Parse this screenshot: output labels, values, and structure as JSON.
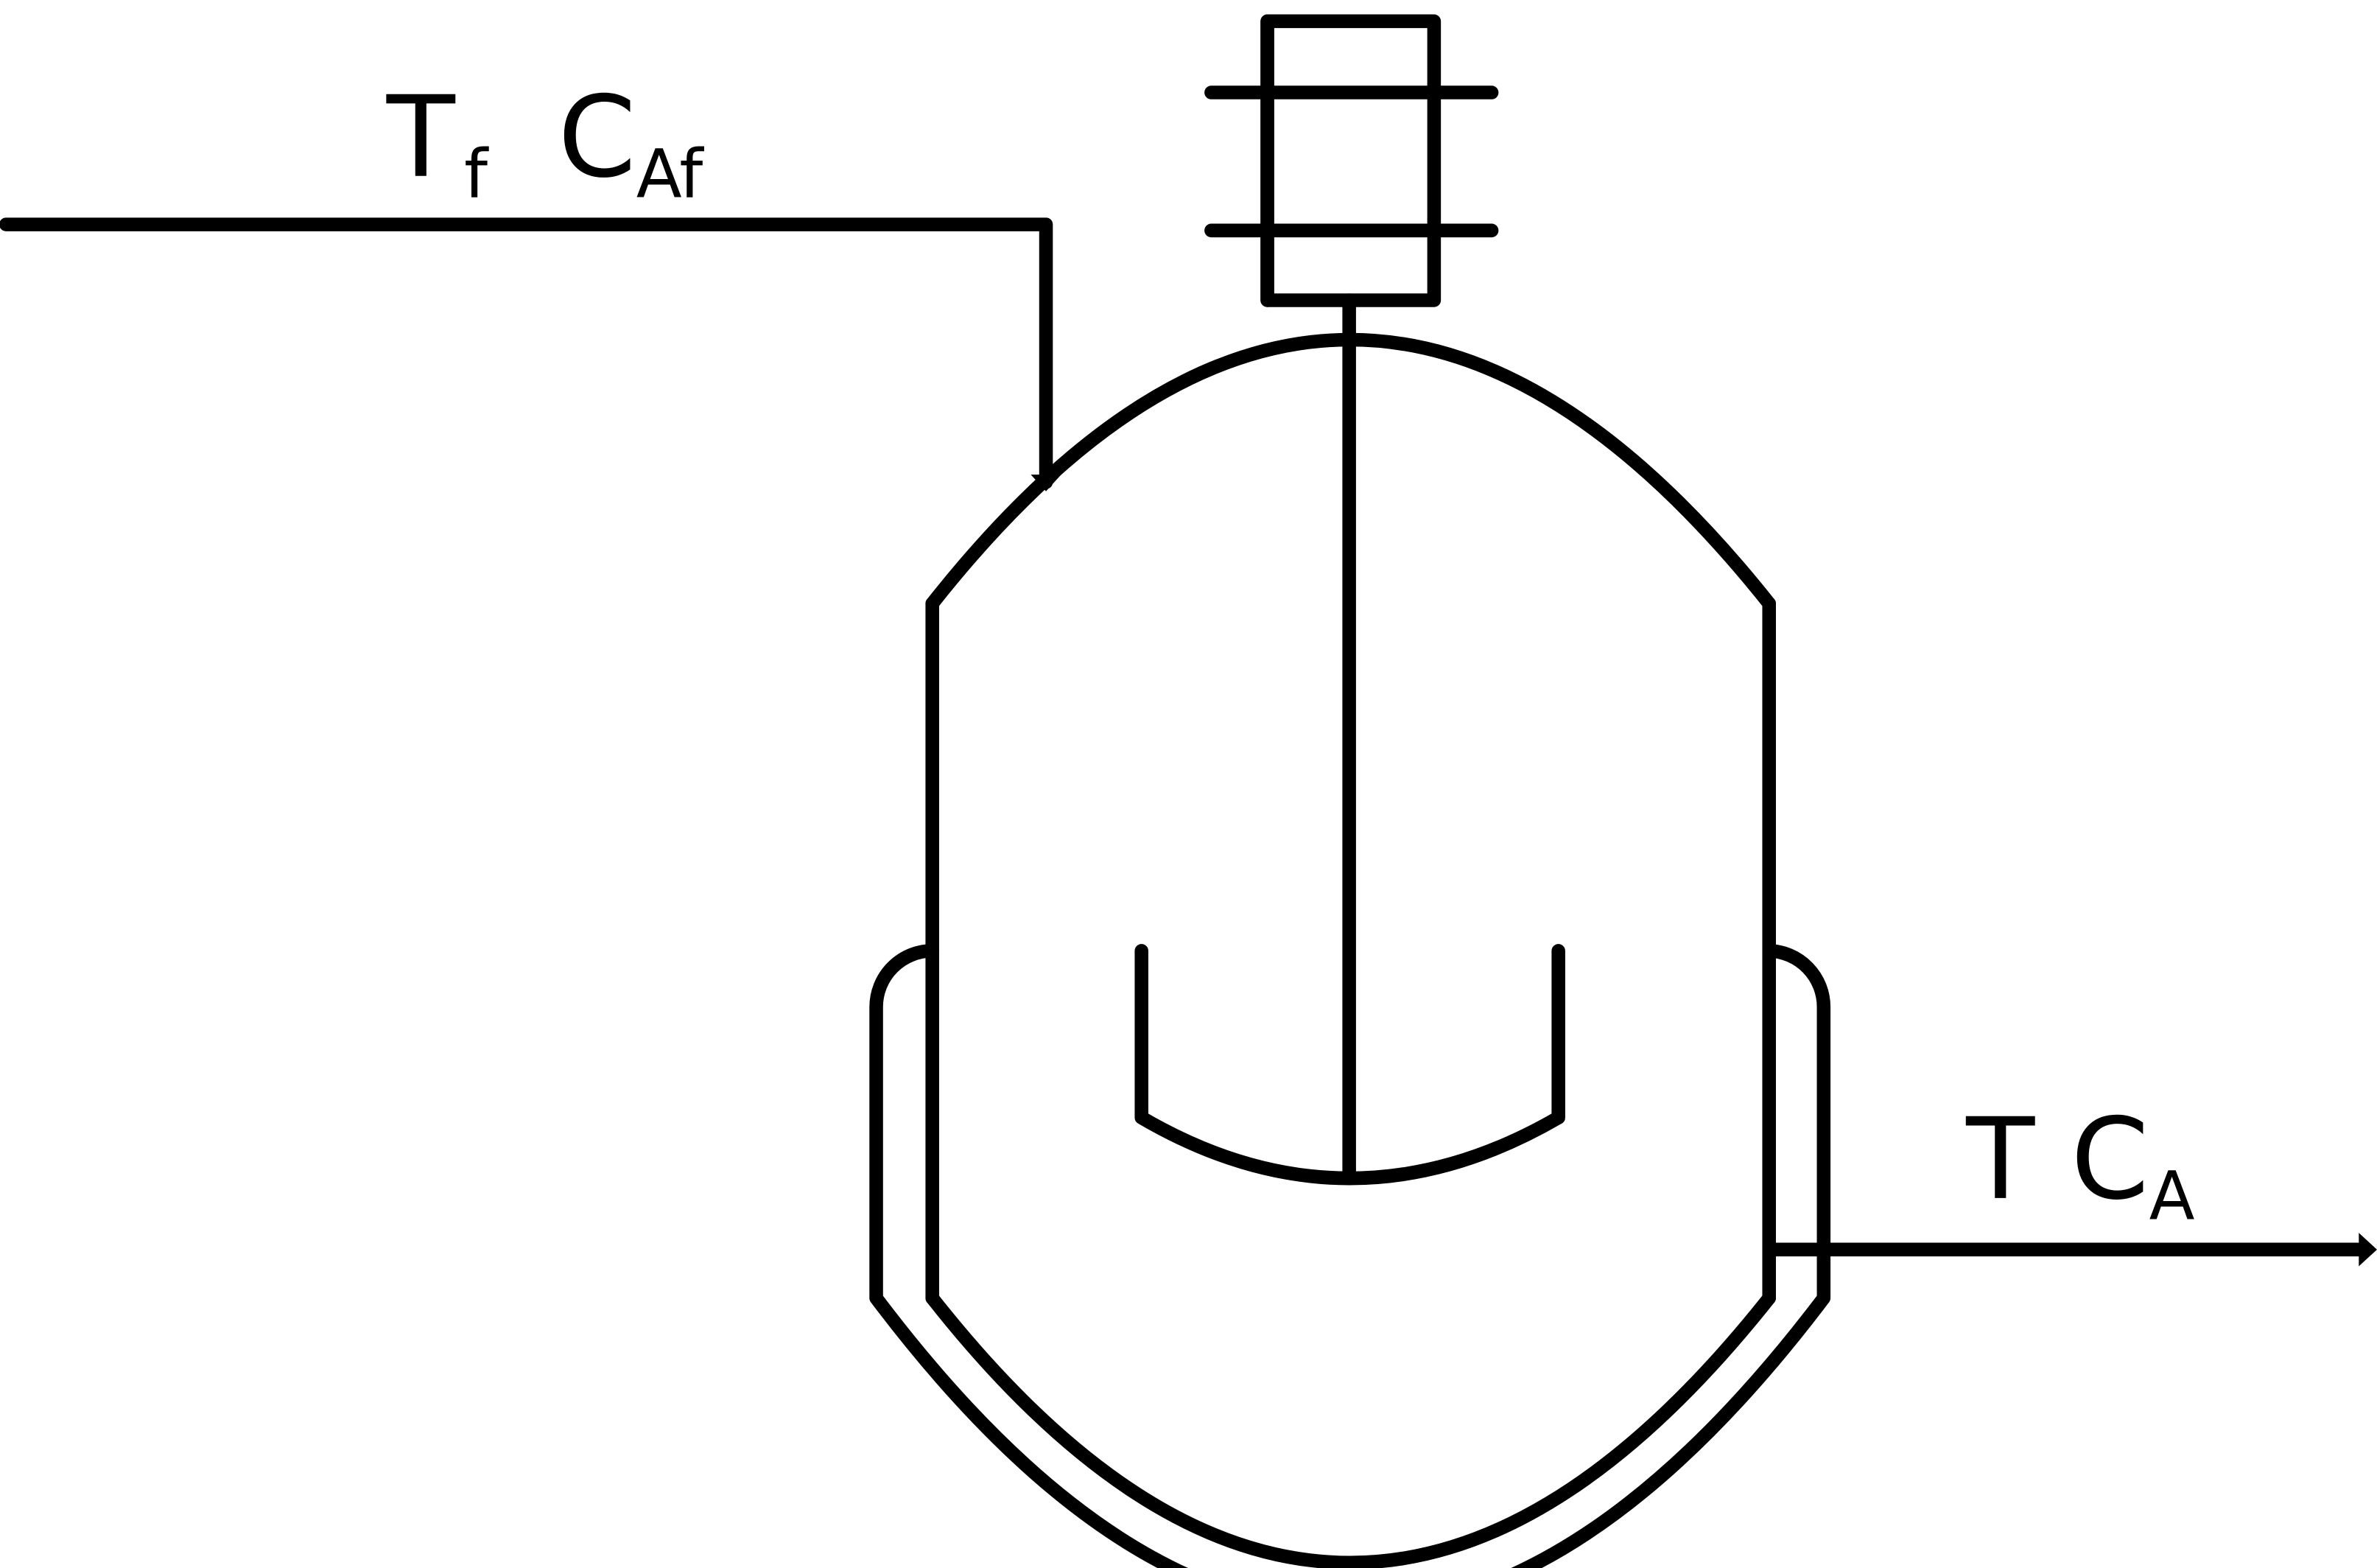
{
  "diagram": {
    "feed": {
      "temperature": {
        "main": "T",
        "sub": "f"
      },
      "concentration": {
        "main": "C",
        "sub": "Af"
      }
    },
    "outlet": {
      "temperature": {
        "main": "T",
        "sub": ""
      },
      "concentration": {
        "main": "C",
        "sub": "A"
      }
    }
  }
}
